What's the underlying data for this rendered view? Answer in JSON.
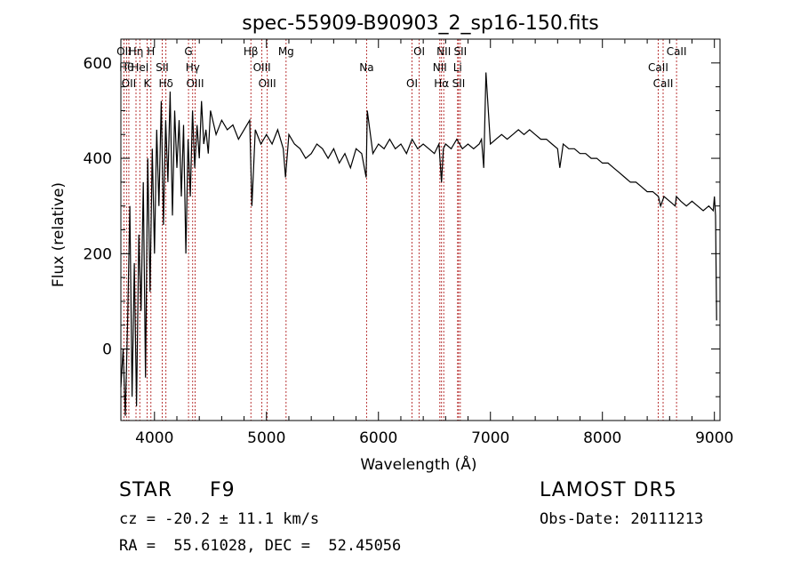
{
  "chart_data": {
    "type": "line",
    "title": "spec-55909-B90903_2_sp16-150.fits",
    "xlabel": "Wavelength (Å)",
    "ylabel": "Flux (relative)",
    "xlim": [
      3700,
      9050
    ],
    "ylim": [
      -150,
      650
    ],
    "xticks": [
      4000,
      5000,
      6000,
      7000,
      8000,
      9000
    ],
    "yticks": [
      0,
      200,
      400,
      600
    ],
    "grid": false,
    "series": [
      {
        "x": [
          3700,
          3720,
          3740,
          3760,
          3780,
          3800,
          3820,
          3840,
          3860,
          3880,
          3900,
          3920,
          3940,
          3960,
          3980,
          4000,
          4020,
          4040,
          4060,
          4080,
          4100,
          4120,
          4140,
          4160,
          4180,
          4200,
          4220,
          4240,
          4260,
          4280,
          4300,
          4320,
          4340,
          4360,
          4380,
          4400,
          4420,
          4440,
          4460,
          4480,
          4500,
          4550,
          4600,
          4650,
          4700,
          4750,
          4800,
          4850,
          4870,
          4900,
          4950,
          5000,
          5050,
          5100,
          5150,
          5170,
          5200,
          5250,
          5300,
          5350,
          5400,
          5450,
          5500,
          5550,
          5600,
          5650,
          5700,
          5750,
          5800,
          5850,
          5890,
          5900,
          5950,
          6000,
          6050,
          6100,
          6150,
          6200,
          6250,
          6300,
          6350,
          6400,
          6450,
          6500,
          6540,
          6563,
          6580,
          6600,
          6650,
          6700,
          6750,
          6800,
          6850,
          6900,
          6920,
          6940,
          6960,
          7000,
          7050,
          7100,
          7150,
          7200,
          7250,
          7300,
          7350,
          7400,
          7450,
          7500,
          7550,
          7600,
          7620,
          7650,
          7700,
          7750,
          7800,
          7850,
          7900,
          7950,
          8000,
          8050,
          8100,
          8150,
          8200,
          8250,
          8300,
          8350,
          8400,
          8450,
          8500,
          8520,
          8550,
          8600,
          8650,
          8660,
          8700,
          8750,
          8800,
          8850,
          8900,
          8950,
          8990,
          9000,
          9010,
          9020
        ],
        "values": [
          -80,
          0,
          -140,
          60,
          300,
          -100,
          180,
          -120,
          240,
          80,
          350,
          -60,
          400,
          120,
          420,
          200,
          460,
          300,
          520,
          260,
          480,
          350,
          540,
          280,
          500,
          380,
          480,
          320,
          470,
          200,
          440,
          320,
          500,
          380,
          470,
          400,
          520,
          430,
          460,
          410,
          500,
          450,
          480,
          460,
          470,
          440,
          460,
          480,
          300,
          460,
          430,
          450,
          430,
          460,
          420,
          360,
          450,
          430,
          420,
          400,
          410,
          430,
          420,
          400,
          420,
          390,
          410,
          380,
          420,
          410,
          360,
          500,
          410,
          430,
          420,
          440,
          420,
          430,
          410,
          440,
          420,
          430,
          420,
          410,
          430,
          350,
          420,
          430,
          420,
          440,
          420,
          430,
          420,
          430,
          440,
          380,
          580,
          430,
          440,
          450,
          440,
          450,
          460,
          450,
          460,
          450,
          440,
          440,
          430,
          420,
          380,
          430,
          420,
          420,
          410,
          410,
          400,
          400,
          390,
          390,
          380,
          370,
          360,
          350,
          350,
          340,
          330,
          330,
          320,
          300,
          320,
          310,
          300,
          320,
          310,
          300,
          310,
          300,
          290,
          300,
          290,
          320,
          280,
          60
        ]
      }
    ],
    "lines": [
      {
        "wavelength": 3727,
        "label": "OII"
      },
      {
        "wavelength": 3750,
        "label": "Hθ"
      },
      {
        "wavelength": 3771,
        "label": "OII"
      },
      {
        "wavelength": 3835,
        "label": "Hη"
      },
      {
        "wavelength": 3869,
        "label": "HeI"
      },
      {
        "wavelength": 3934,
        "label": "K"
      },
      {
        "wavelength": 3968,
        "label": "H"
      },
      {
        "wavelength": 4069,
        "label": "SII"
      },
      {
        "wavelength": 4102,
        "label": "Hδ"
      },
      {
        "wavelength": 4304,
        "label": "G"
      },
      {
        "wavelength": 4341,
        "label": "Hγ"
      },
      {
        "wavelength": 4363,
        "label": "OIII"
      },
      {
        "wavelength": 4861,
        "label": "Hβ"
      },
      {
        "wavelength": 4959,
        "label": "OIII"
      },
      {
        "wavelength": 5007,
        "label": "OIII"
      },
      {
        "wavelength": 5175,
        "label": "Mg"
      },
      {
        "wavelength": 5894,
        "label": "Na"
      },
      {
        "wavelength": 6300,
        "label": "OI"
      },
      {
        "wavelength": 6364,
        "label": "OI"
      },
      {
        "wavelength": 6548,
        "label": "NII"
      },
      {
        "wavelength": 6563,
        "label": "Hα"
      },
      {
        "wavelength": 6583,
        "label": "NII"
      },
      {
        "wavelength": 6707,
        "label": "Li"
      },
      {
        "wavelength": 6716,
        "label": "SII"
      },
      {
        "wavelength": 6731,
        "label": "SII"
      },
      {
        "wavelength": 8498,
        "label": "CaII"
      },
      {
        "wavelength": 8542,
        "label": "CaII"
      },
      {
        "wavelength": 8662,
        "label": "CaII"
      }
    ]
  },
  "info": {
    "object_class": "STAR",
    "subclass": "F9",
    "survey": "LAMOST DR5",
    "redshift": "cz = -20.2 ± 11.1 km/s",
    "obs_date": "Obs-Date: 20111213",
    "coords": "RA =  55.61028, DEC =  52.45056"
  },
  "colors": {
    "spectrum": "#000000",
    "line_markers": "#b22222",
    "axes": "#000000"
  }
}
